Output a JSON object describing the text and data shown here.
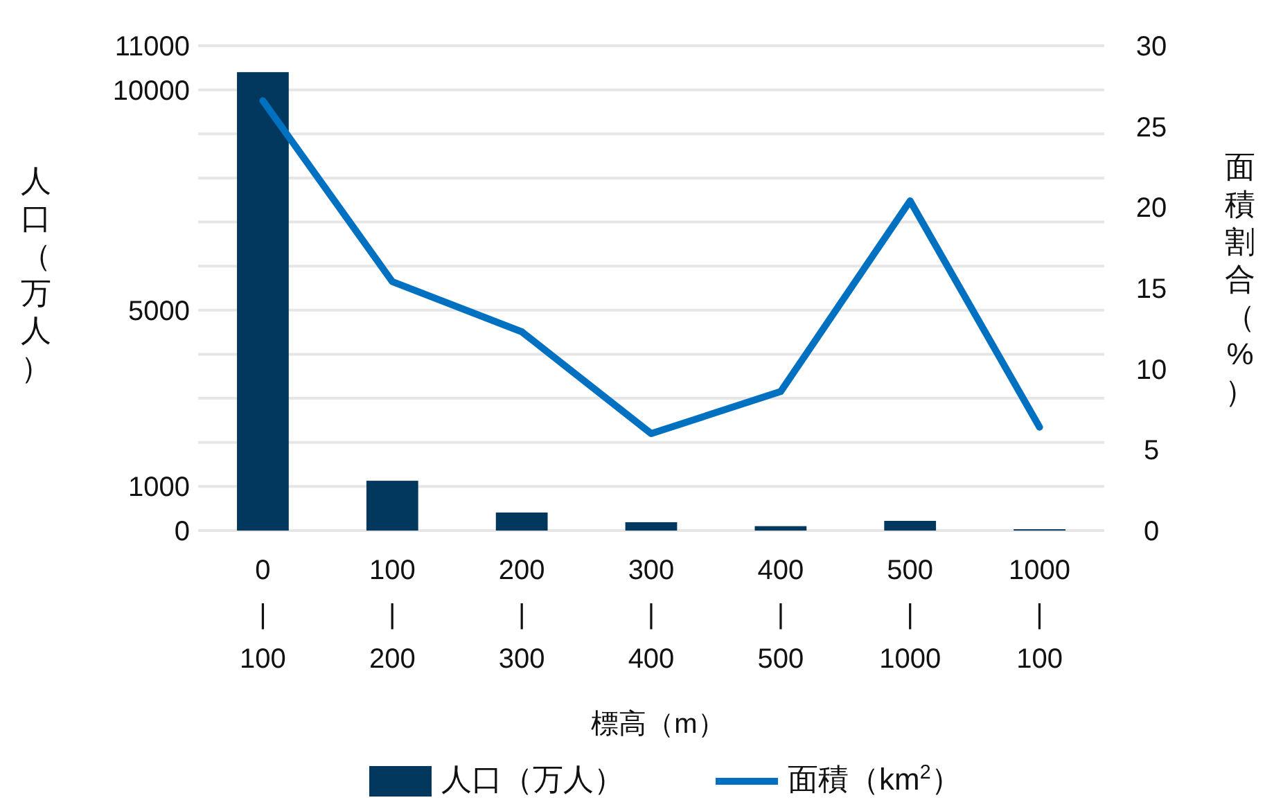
{
  "chart_data": {
    "type": "bar",
    "xlabel": "標高（m）",
    "ylabel": "人口（万人）",
    "y2label": "面積割合（%）",
    "categories": [
      "0\n|\n100",
      "100\n|\n200",
      "200\n|\n300",
      "300\n|\n400",
      "400\n|\n500",
      "500\n|\n1000",
      "1000\n|\n100"
    ],
    "series": [
      {
        "name": "人口（万人）",
        "color": "#02375e",
        "values": [
          10400,
          1130,
          410,
          190,
          100,
          220,
          30
        ]
      },
      {
        "name": "面積（km$^{2}$）",
        "type": "line",
        "axis": "y2",
        "color": "#0070c0",
        "values": [
          26.6,
          15.4,
          12.3,
          6.0,
          8.6,
          20.4,
          6.4
        ]
      }
    ],
    "ylim": [
      0,
      11000
    ],
    "yticks": [
      0,
      1000,
      {
        "value": 2000,
        "label": null
      },
      {
        "value": 3000,
        "label": null
      },
      {
        "value": 4000,
        "label": null
      },
      5000,
      {
        "value": 6000,
        "label": null
      },
      {
        "value": 7000,
        "label": null
      },
      {
        "value": 8000,
        "label": null
      },
      {
        "value": 9000,
        "label": null
      },
      10000,
      11000
    ],
    "y2lim": [
      0,
      30
    ],
    "y2ticks": [
      0,
      5,
      10,
      15,
      20,
      25,
      30
    ],
    "grid": "y",
    "legend": "bottom",
    "line_style": "solid",
    "marker": "none"
  }
}
